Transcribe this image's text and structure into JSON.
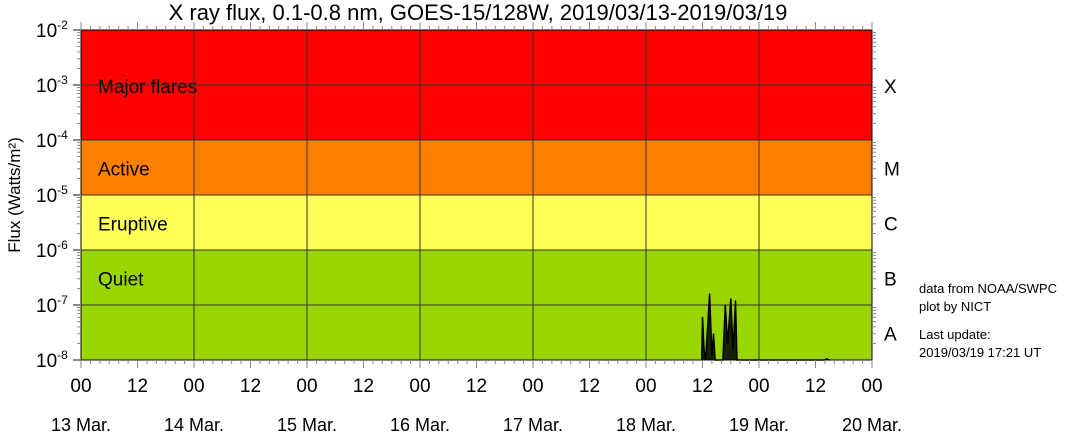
{
  "chart_data": {
    "type": "line",
    "title": "X ray flux, 0.1-0.8 nm, GOES-15/128W, 2019/03/13-2019/03/19",
    "ylabel": "Flux (Watts/m²)",
    "yscale": "log",
    "ylim": [
      1e-08,
      0.01
    ],
    "ytick_labels": [
      {
        "base": "10",
        "exp": "-2"
      },
      {
        "base": "10",
        "exp": "-3"
      },
      {
        "base": "10",
        "exp": "-4"
      },
      {
        "base": "10",
        "exp": "-5"
      },
      {
        "base": "10",
        "exp": "-6"
      },
      {
        "base": "10",
        "exp": "-7"
      },
      {
        "base": "10",
        "exp": "-8"
      }
    ],
    "xlim_days": [
      0,
      7
    ],
    "xtick_hours": [
      "00",
      "12",
      "00",
      "12",
      "00",
      "12",
      "00",
      "12",
      "00",
      "12",
      "00",
      "12",
      "00",
      "12",
      "00"
    ],
    "xdate_labels": [
      "13 Mar.",
      "14 Mar.",
      "15 Mar.",
      "16 Mar.",
      "17 Mar.",
      "18 Mar.",
      "19 Mar.",
      "20 Mar."
    ],
    "grid": true,
    "bands": [
      {
        "label": "Major flares",
        "class": "X",
        "from": 0.0001,
        "to": 0.01,
        "color": "#ff0000"
      },
      {
        "label": "Active",
        "class": "M",
        "from": 1e-05,
        "to": 0.0001,
        "color": "#ff8000"
      },
      {
        "label": "Eruptive",
        "class": "C",
        "from": 1e-06,
        "to": 1e-05,
        "color": "#ffff55"
      },
      {
        "label": "Quiet",
        "class": "B",
        "from": 1e-07,
        "to": 1e-06,
        "color": "#99d600"
      },
      {
        "label": "",
        "class": "A",
        "from": 1e-08,
        "to": 1e-07,
        "color": "#99d600"
      }
    ],
    "series": [
      {
        "color": "#000000",
        "points": [
          [
            "2019-03-18 11:50",
            5e-09
          ],
          [
            "2019-03-18 12:00",
            6e-08
          ],
          [
            "2019-03-18 12:20",
            1.5e-08
          ],
          [
            "2019-03-18 12:40",
            5e-09
          ],
          [
            "2019-03-18 13:30",
            1.6e-07
          ],
          [
            "2019-03-18 14:00",
            1.2e-08
          ],
          [
            "2019-03-18 14:20",
            3e-08
          ],
          [
            "2019-03-18 14:40",
            5e-09
          ],
          [
            "2019-03-18 16:20",
            1e-08
          ],
          [
            "2019-03-18 16:50",
            1e-07
          ],
          [
            "2019-03-18 17:20",
            2e-08
          ],
          [
            "2019-03-18 18:00",
            1.3e-07
          ],
          [
            "2019-03-18 18:30",
            1.5e-08
          ],
          [
            "2019-03-18 19:00",
            1.2e-07
          ],
          [
            "2019-03-18 19:20",
            5e-09
          ],
          [
            "2019-03-19 14:00",
            5e-09
          ],
          [
            "2019-03-19 14:20",
            1.05e-08
          ],
          [
            "2019-03-19 15:00",
            5e-09
          ]
        ]
      }
    ]
  },
  "notes": {
    "source": "data from NOAA/SWPC",
    "plotter": "plot by NICT",
    "update_label": "Last update:",
    "update_time": "2019/03/19 17:21 UT"
  }
}
